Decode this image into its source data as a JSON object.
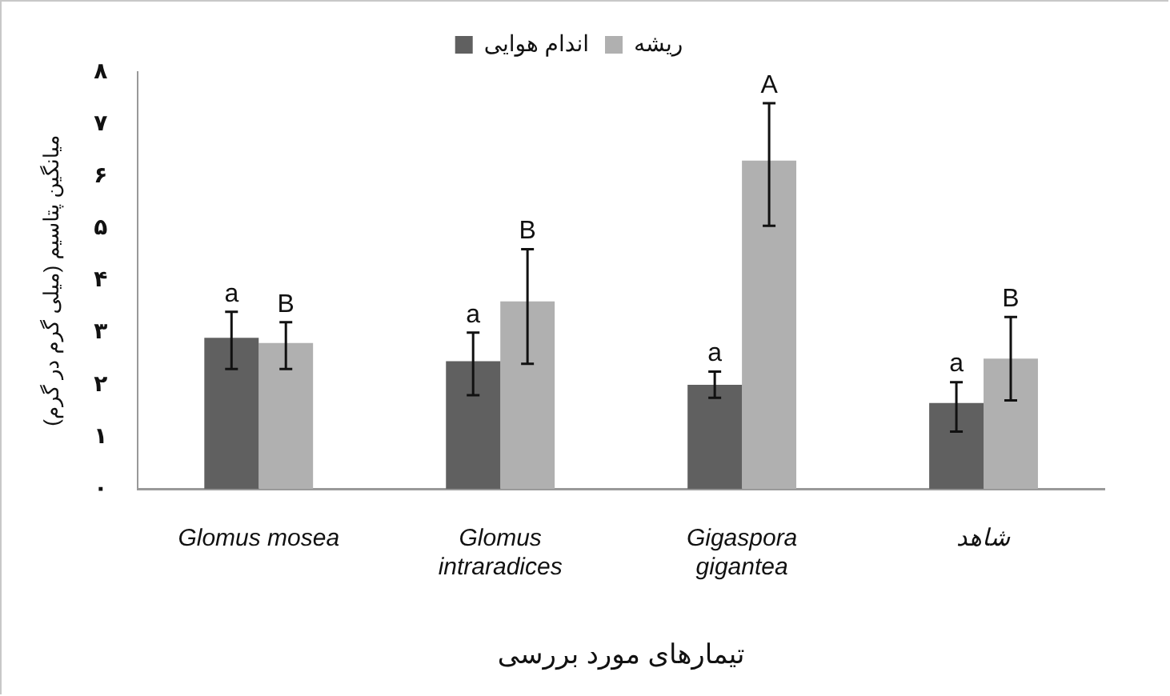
{
  "chart_data": {
    "type": "bar",
    "xlabel": "تیمارهای مورد بررسی",
    "ylabel": "میانگین پتاسیم (میلی گرم در گرم)",
    "categories": [
      "Glomus mosea",
      "Glomus intraradices",
      "Gigaspora gigantea",
      "شاهد"
    ],
    "series": [
      {
        "name": "اندام هوایی",
        "color": "#606060",
        "values": [
          2.9,
          2.45,
          2.0,
          1.65
        ],
        "errors": [
          [
            2.3,
            3.4
          ],
          [
            1.8,
            3.0
          ],
          [
            1.75,
            2.25
          ],
          [
            1.1,
            2.05
          ]
        ],
        "value_labels": [
          "a",
          "a",
          "a",
          "a"
        ]
      },
      {
        "name": "ریشه",
        "color": "#b0b0b0",
        "values": [
          2.8,
          3.6,
          6.3,
          2.5
        ],
        "errors": [
          [
            2.3,
            3.2
          ],
          [
            2.4,
            4.6
          ],
          [
            5.05,
            7.4
          ],
          [
            1.7,
            3.3
          ]
        ],
        "value_labels": [
          "B",
          "B",
          "A",
          "B"
        ]
      }
    ],
    "ylim": [
      0,
      8
    ],
    "yticks": [
      {
        "value": 0,
        "label": "۰"
      },
      {
        "value": 1,
        "label": "۱"
      },
      {
        "value": 2,
        "label": "۲"
      },
      {
        "value": 3,
        "label": "۳"
      },
      {
        "value": 4,
        "label": "۴"
      },
      {
        "value": 5,
        "label": "۵"
      },
      {
        "value": 6,
        "label": "۶"
      },
      {
        "value": 7,
        "label": "۷"
      },
      {
        "value": 8,
        "label": "۸"
      }
    ],
    "grid": false,
    "legend": "top"
  }
}
